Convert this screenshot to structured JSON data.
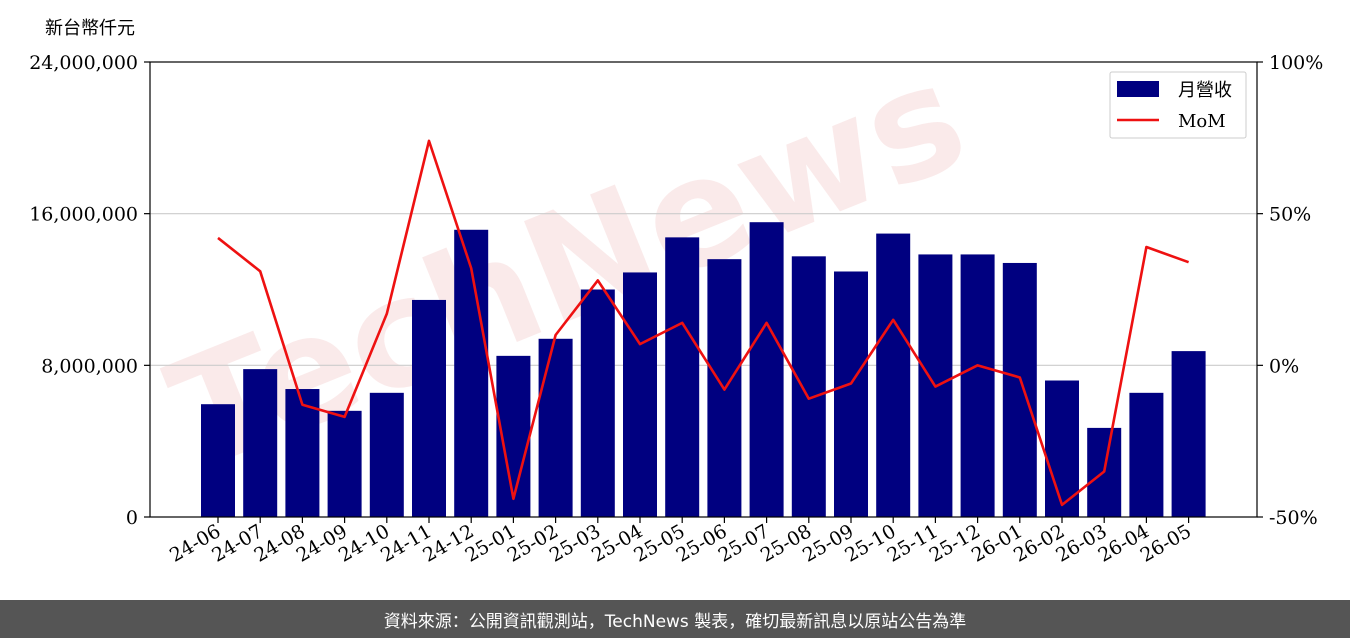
{
  "watermark": "TechNews",
  "footer": {
    "text": "資料來源：公開資訊觀測站，TechNews 製表，確切最新訊息以原站公告為準"
  },
  "colors": {
    "bar": "#000080",
    "line": "#ee1111",
    "grid": "#cccccc",
    "footer_bg": "#555555"
  },
  "chart_data": {
    "type": "bar",
    "ylabel": "新台幣仟元",
    "categories": [
      "24-06",
      "24-07",
      "24-08",
      "24-09",
      "24-10",
      "24-11",
      "24-12",
      "25-01",
      "25-02",
      "25-03",
      "25-04",
      "25-05",
      "25-06",
      "25-07",
      "25-08",
      "25-09",
      "25-10",
      "25-11",
      "25-12",
      "26-01",
      "26-02",
      "26-03",
      "26-04",
      "26-05"
    ],
    "series": [
      {
        "name": "月營收",
        "type": "bar",
        "axis": "left",
        "values": [
          5950000,
          7800000,
          6750000,
          5600000,
          6550000,
          11450000,
          15150000,
          8500000,
          9400000,
          12000000,
          12900000,
          14750000,
          13600000,
          15550000,
          13750000,
          12950000,
          14950000,
          13850000,
          13850000,
          13400000,
          7200000,
          4700000,
          6550000,
          8750000
        ]
      },
      {
        "name": "MoM",
        "type": "line",
        "axis": "right",
        "values": [
          42,
          31,
          -13,
          -17,
          17,
          74,
          32,
          -44,
          10,
          28,
          7,
          14,
          -8,
          14,
          -11,
          -6,
          15,
          -7,
          0,
          -4,
          -46,
          -35,
          39,
          34
        ]
      }
    ],
    "left_axis": {
      "min": 0,
      "max": 24000000,
      "ticks": [
        0,
        8000000,
        16000000,
        24000000
      ],
      "tick_labels": [
        "0",
        "8,000,000",
        "16,000,000",
        "24,000,000"
      ]
    },
    "right_axis": {
      "min": -50,
      "max": 100,
      "ticks": [
        -50,
        0,
        50,
        100
      ],
      "tick_labels": [
        "-50%",
        "0%",
        "50%",
        "100%"
      ]
    },
    "grid": "horizontal",
    "legend_position": "top-right"
  }
}
